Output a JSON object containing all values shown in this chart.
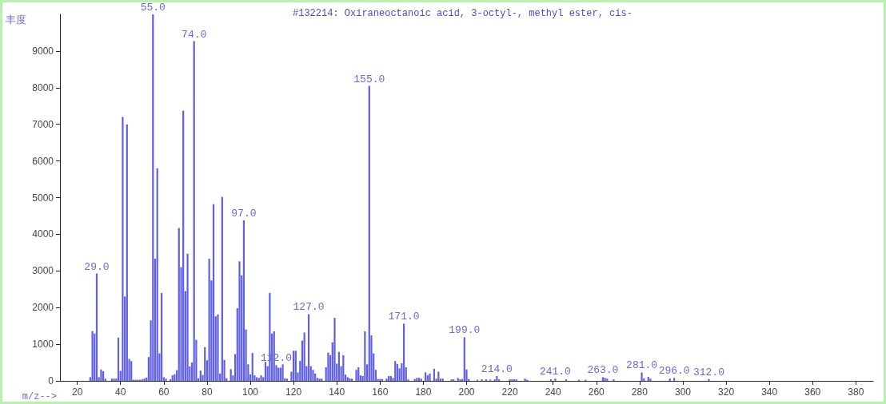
{
  "chart_data": {
    "type": "bar",
    "title": "#132214: Oxiraneoctanoic acid, 3-octyl-, methyl ester, cis-",
    "xlabel": "m/z-->",
    "ylabel": "丰度",
    "x": [
      26,
      27,
      28,
      29,
      30,
      31,
      32,
      33,
      36,
      37,
      38,
      39,
      40,
      41,
      42,
      43,
      44,
      45,
      46,
      47,
      48,
      49,
      50,
      51,
      52,
      53,
      54,
      55,
      56,
      57,
      58,
      59,
      60,
      61,
      63,
      64,
      65,
      66,
      67,
      68,
      69,
      70,
      71,
      72,
      73,
      74,
      75,
      76,
      77,
      78,
      79,
      80,
      81,
      82,
      83,
      84,
      85,
      86,
      87,
      88,
      89,
      91,
      92,
      93,
      94,
      95,
      96,
      97,
      98,
      99,
      100,
      101,
      102,
      103,
      104,
      105,
      106,
      107,
      108,
      109,
      110,
      111,
      112,
      113,
      114,
      115,
      116,
      117,
      119,
      120,
      121,
      122,
      123,
      124,
      125,
      126,
      127,
      128,
      129,
      130,
      131,
      132,
      133,
      135,
      136,
      137,
      138,
      139,
      140,
      141,
      142,
      143,
      144,
      145,
      146,
      147,
      149,
      150,
      151,
      152,
      153,
      154,
      155,
      156,
      157,
      158,
      159,
      160,
      161,
      163,
      164,
      165,
      166,
      167,
      168,
      169,
      170,
      171,
      172,
      173,
      176,
      177,
      178,
      179,
      181,
      182,
      183,
      185,
      186,
      187,
      188,
      189,
      193,
      194,
      196,
      197,
      198,
      199,
      200,
      201,
      205,
      207,
      209,
      211,
      213,
      214,
      215,
      220,
      221,
      222,
      223,
      227,
      228,
      239,
      241,
      246,
      252,
      255,
      263,
      264,
      265,
      268,
      281,
      282,
      284,
      285,
      294,
      296,
      312
    ],
    "values": [
      100,
      1360,
      1290,
      2930,
      100,
      310,
      260,
      60,
      60,
      60,
      60,
      1180,
      270,
      7200,
      2300,
      7000,
      600,
      540,
      30,
      30,
      30,
      30,
      40,
      60,
      90,
      650,
      1650,
      10000,
      3330,
      5800,
      750,
      2400,
      100,
      60,
      40,
      150,
      180,
      290,
      4170,
      3100,
      7370,
      2450,
      3470,
      390,
      500,
      9270,
      1120,
      70,
      280,
      160,
      920,
      560,
      3330,
      2740,
      4820,
      1760,
      1810,
      200,
      5020,
      570,
      70,
      320,
      150,
      730,
      1980,
      3260,
      2880,
      4380,
      1400,
      450,
      180,
      760,
      150,
      100,
      80,
      150,
      100,
      520,
      400,
      2400,
      1290,
      1350,
      430,
      360,
      360,
      450,
      70,
      60,
      250,
      820,
      820,
      230,
      540,
      1100,
      1320,
      400,
      1820,
      400,
      300,
      200,
      80,
      60,
      60,
      370,
      770,
      700,
      1050,
      1720,
      470,
      790,
      400,
      700,
      170,
      100,
      70,
      60,
      300,
      370,
      150,
      130,
      1350,
      450,
      8050,
      1240,
      750,
      300,
      50,
      50,
      50,
      60,
      130,
      130,
      80,
      540,
      460,
      340,
      480,
      1560,
      370,
      40,
      50,
      80,
      80,
      60,
      230,
      150,
      200,
      330,
      60,
      250,
      60,
      60,
      40,
      40,
      80,
      40,
      50,
      1190,
      310,
      50,
      30,
      40,
      40,
      30,
      40,
      130,
      40,
      40,
      40,
      40,
      40,
      60,
      30,
      40,
      60,
      40,
      30,
      30,
      100,
      80,
      60,
      40,
      230,
      70,
      110,
      60,
      60,
      80,
      50
    ],
    "color": "#5f5fe8",
    "xlim": [
      12,
      388
    ],
    "xticks": [
      20,
      40,
      60,
      80,
      100,
      120,
      140,
      160,
      180,
      200,
      220,
      240,
      260,
      280,
      300,
      320,
      340,
      360,
      380
    ],
    "ylim": [
      0,
      10000
    ],
    "yticks": [
      0,
      1000,
      2000,
      3000,
      4000,
      5000,
      6000,
      7000,
      8000,
      9000
    ],
    "grid": false,
    "annotations": [
      {
        "text": "29.0",
        "x": 29,
        "y": 2930
      },
      {
        "text": "55.0",
        "x": 55,
        "y": 10000
      },
      {
        "text": "74.0",
        "x": 74,
        "y": 9270
      },
      {
        "text": "97.0",
        "x": 97,
        "y": 4380
      },
      {
        "text": "112.0",
        "x": 112,
        "y": 430
      },
      {
        "text": "127.0",
        "x": 127,
        "y": 1820
      },
      {
        "text": "155.0",
        "x": 155,
        "y": 8050
      },
      {
        "text": "171.0",
        "x": 171,
        "y": 1560
      },
      {
        "text": "199.0",
        "x": 199,
        "y": 1190
      },
      {
        "text": "214.0",
        "x": 214,
        "y": 130
      },
      {
        "text": "241.0",
        "x": 241,
        "y": 60
      },
      {
        "text": "263.0",
        "x": 263,
        "y": 100
      },
      {
        "text": "281.0",
        "x": 281,
        "y": 230
      },
      {
        "text": "296.0",
        "x": 296,
        "y": 80
      },
      {
        "text": "312.0",
        "x": 312,
        "y": 50
      }
    ]
  }
}
